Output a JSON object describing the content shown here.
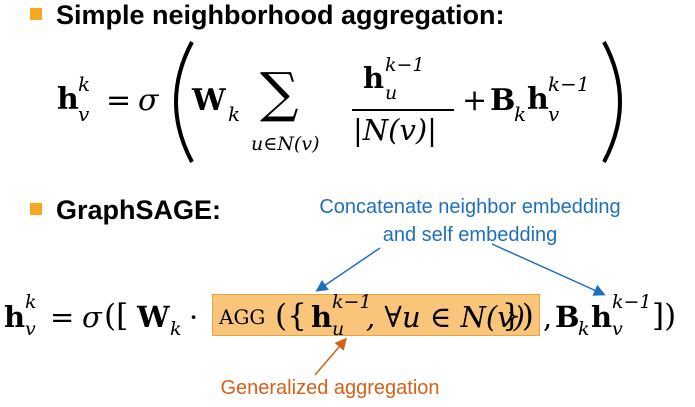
{
  "colors": {
    "bullet": "#f6a821",
    "annotation_blue": "#1f6fbd",
    "annotation_orange": "#d4601a",
    "agg_highlight": "#f8c57a"
  },
  "section1": {
    "title": "Simple neighborhood aggregation:",
    "formula": {
      "h": "h",
      "k": "k",
      "v": "v",
      "equals": "=",
      "sigma": "σ",
      "W": "W",
      "sum": "∑",
      "sum_sub": "u∈N(v)",
      "frac_num_sup": "k−1",
      "frac_num_sub": "u",
      "frac_den": "|N(v)|",
      "plus": "+",
      "B": "B",
      "sub_k": "k",
      "last_sup": "k−1",
      "last_sub": "v"
    }
  },
  "section2": {
    "title": "GraphSAGE:",
    "annotation_top": "Concatenate neighbor embedding\nand self embedding",
    "annotation_bottom": "Generalized aggregation",
    "formula": {
      "lhs": "h",
      "lhs_sup": "k",
      "lhs_sub": "v",
      "equals": "=",
      "sigma": "σ",
      "open": "([",
      "W": "W",
      "W_sub": "k",
      "dot": "·",
      "agg": "AGG",
      "agg_open": "({",
      "h": "h",
      "h_sup": "k−1",
      "h_sub": "u",
      "forall": ", ∀u ∈ N(v)",
      "agg_close": "})",
      "comma": ",",
      "B": "B",
      "B_sub": "k",
      "h2": "h",
      "h2_sup": "k−1",
      "h2_sub": "v",
      "close": "])"
    }
  }
}
